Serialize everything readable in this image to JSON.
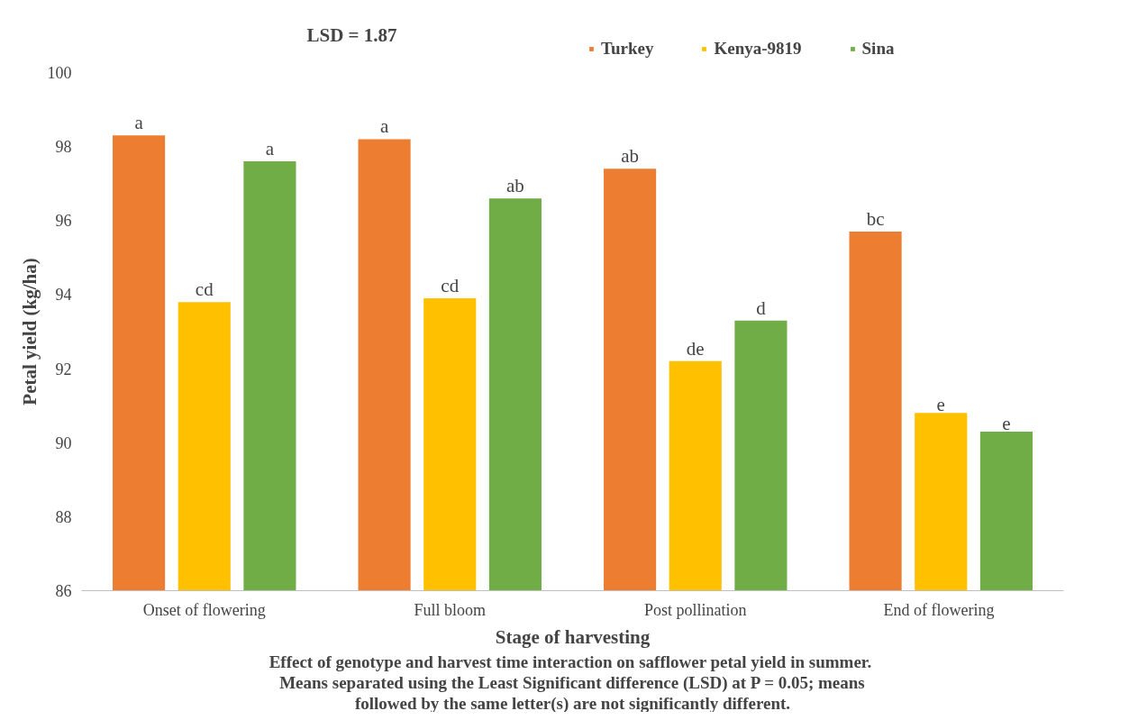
{
  "chart_data": {
    "type": "bar",
    "xlabel": "Stage of harvesting",
    "ylabel": "Petal yield (kg/ha)",
    "categories": [
      "Onset of flowering",
      "Full bloom",
      "Post pollination",
      "End of  flowering"
    ],
    "series": [
      {
        "name": "Turkey",
        "color": "#ed7d31",
        "values": [
          98.3,
          98.2,
          97.4,
          95.7
        ],
        "value_labels": [
          "a",
          "a",
          "ab",
          "bc"
        ]
      },
      {
        "name": "Kenya-9819",
        "color": "#ffc000",
        "values": [
          93.8,
          93.9,
          92.2,
          90.8
        ],
        "value_labels": [
          "cd",
          "cd",
          "de",
          "e"
        ]
      },
      {
        "name": "Sina",
        "color": "#70ad47",
        "values": [
          97.6,
          96.6,
          93.3,
          90.3
        ],
        "value_labels": [
          "a",
          "ab",
          "d",
          "e"
        ]
      }
    ],
    "ylim": [
      86,
      100
    ],
    "yticks": [
      86,
      88,
      90,
      92,
      94,
      96,
      98,
      100
    ],
    "grid": false,
    "legend": "top",
    "annotations": [
      "LSD = 1.87",
      "Effect of genotype and harvest time interaction on  safflower petal yield in summer.",
      "Means separated using the Least Significant difference (LSD) at P = 0.05; means",
      "followed by the same letter(s) are not significantly different."
    ]
  }
}
